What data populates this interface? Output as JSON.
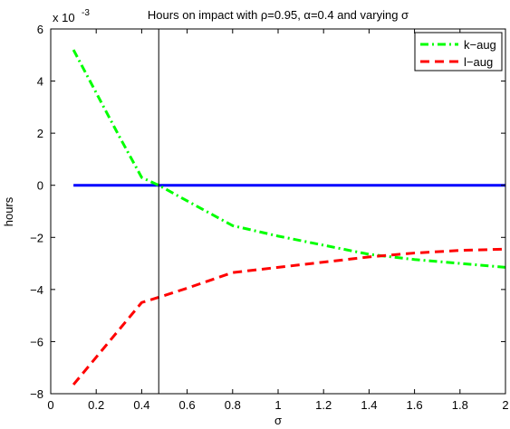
{
  "chart_data": {
    "type": "line",
    "title": "Hours on impact with ρ=0.95, α=0.4 and varying σ",
    "xlabel": "σ",
    "ylabel": "hours",
    "y_exponent_label": "x 10",
    "y_exponent_power": "-3",
    "xlim": [
      0,
      2
    ],
    "ylim": [
      -8,
      6
    ],
    "x_ticks": [
      0,
      0.2,
      0.4,
      0.6,
      0.8,
      1,
      1.2,
      1.4,
      1.6,
      1.8,
      2
    ],
    "x_tick_labels": [
      "0",
      "0.2",
      "0.4",
      "0.6",
      "0.8",
      "1",
      "1.2",
      "1.4",
      "1.6",
      "1.8",
      "2"
    ],
    "y_ticks": [
      -8,
      -6,
      -4,
      -2,
      0,
      2,
      4,
      6
    ],
    "y_tick_labels": [
      "−8",
      "−6",
      "−4",
      "−2",
      "0",
      "2",
      "4",
      "6"
    ],
    "grid": false,
    "legend_position": "top-right",
    "vertical_line_x": 0.475,
    "series": [
      {
        "name": "",
        "color": "#0000ff",
        "style": "solid",
        "x": [
          0.1,
          2.0
        ],
        "y": [
          0,
          0
        ]
      },
      {
        "name": "k−aug",
        "color": "#00ff00",
        "style": "dashdot",
        "x": [
          0.1,
          0.2,
          0.3,
          0.4,
          0.475,
          0.6,
          0.8,
          1.0,
          1.2,
          1.4,
          1.6,
          1.8,
          2.0
        ],
        "y": [
          5.2,
          3.55,
          1.9,
          0.3,
          0.0,
          -0.6,
          -1.55,
          -1.95,
          -2.3,
          -2.65,
          -2.85,
          -3.0,
          -3.15
        ]
      },
      {
        "name": "l−aug",
        "color": "#ff0000",
        "style": "dashed",
        "x": [
          0.1,
          0.2,
          0.3,
          0.4,
          0.475,
          0.6,
          0.8,
          1.0,
          1.2,
          1.4,
          1.6,
          1.8,
          2.0
        ],
        "y": [
          -7.65,
          -6.6,
          -5.55,
          -4.5,
          -4.3,
          -3.95,
          -3.35,
          -3.15,
          -2.95,
          -2.75,
          -2.6,
          -2.5,
          -2.45
        ]
      }
    ]
  }
}
